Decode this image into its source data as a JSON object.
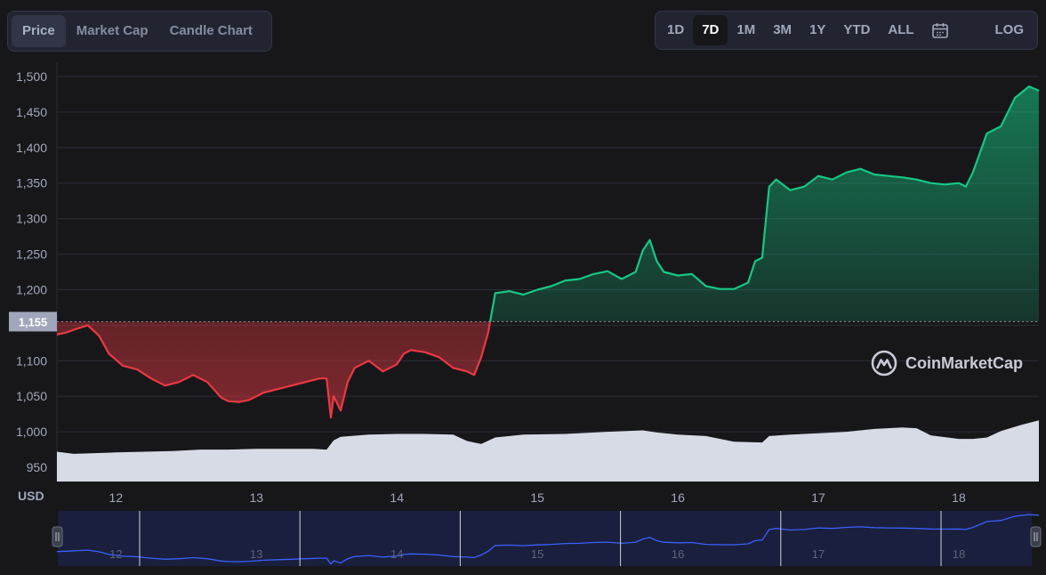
{
  "tabs": [
    {
      "label": "Price",
      "active": true
    },
    {
      "label": "Market Cap",
      "active": false
    },
    {
      "label": "Candle Chart",
      "active": false
    }
  ],
  "ranges": [
    {
      "label": "1D",
      "active": false
    },
    {
      "label": "7D",
      "active": true
    },
    {
      "label": "1M",
      "active": false
    },
    {
      "label": "3M",
      "active": false
    },
    {
      "label": "1Y",
      "active": false
    },
    {
      "label": "YTD",
      "active": false
    },
    {
      "label": "ALL",
      "active": false
    }
  ],
  "calendar_icon": "calendar-icon",
  "log_label": "LOG",
  "watermark": "CoinMarketCap",
  "colors": {
    "up": "#16c784",
    "down": "#ea3943",
    "volume": "#d7dbe6",
    "navigator": "#3861fb"
  },
  "chart_data": {
    "type": "line",
    "xlabel": "",
    "ylabel": "USD",
    "ylim": [
      930,
      1520
    ],
    "y_ticks": [
      950,
      1000,
      1050,
      1100,
      1150,
      1200,
      1250,
      1300,
      1350,
      1400,
      1450,
      1500
    ],
    "y_tick_labels": [
      "950",
      "1,000",
      "1,050",
      "1,100",
      "1,150",
      "1,200",
      "1,250",
      "1,300",
      "1,350",
      "1,400",
      "1,450",
      "1,500"
    ],
    "x_ticks": [
      12,
      13,
      14,
      15,
      16,
      17,
      18
    ],
    "x_tick_labels": [
      "12",
      "13",
      "14",
      "15",
      "16",
      "17",
      "18"
    ],
    "xlim": [
      11.58,
      18.57
    ],
    "baseline": 1155,
    "baseline_label": "1,155",
    "grid": true,
    "series": [
      {
        "x": [
          11.58,
          11.65,
          11.72,
          11.8,
          11.88,
          11.95,
          12.05,
          12.15,
          12.25,
          12.35,
          12.45,
          12.55,
          12.65,
          12.75,
          12.8,
          12.88,
          12.95,
          13.05,
          13.15,
          13.25,
          13.35,
          13.45,
          13.5,
          13.53,
          13.55,
          13.6,
          13.65,
          13.7,
          13.8,
          13.9,
          14.0,
          14.05,
          14.1,
          14.2,
          14.3,
          14.4,
          14.5,
          14.55,
          14.6,
          14.65,
          14.7,
          14.8,
          14.9,
          15.0,
          15.1,
          15.2,
          15.3,
          15.4,
          15.5,
          15.6,
          15.7,
          15.75,
          15.8,
          15.85,
          15.9,
          16.0,
          16.1,
          16.2,
          16.3,
          16.4,
          16.5,
          16.55,
          16.6,
          16.65,
          16.7,
          16.8,
          16.9,
          17.0,
          17.1,
          17.2,
          17.3,
          17.4,
          17.5,
          17.6,
          17.7,
          17.8,
          17.9,
          18.0,
          18.05,
          18.1,
          18.2,
          18.3,
          18.4,
          18.5,
          18.57
        ],
        "y": [
          1137,
          1140,
          1145,
          1150,
          1135,
          1110,
          1093,
          1088,
          1075,
          1065,
          1070,
          1080,
          1070,
          1048,
          1043,
          1042,
          1045,
          1055,
          1060,
          1065,
          1070,
          1075,
          1075,
          1020,
          1050,
          1030,
          1070,
          1090,
          1100,
          1085,
          1095,
          1110,
          1115,
          1112,
          1105,
          1090,
          1085,
          1080,
          1105,
          1140,
          1195,
          1198,
          1193,
          1200,
          1205,
          1213,
          1215,
          1222,
          1226,
          1215,
          1225,
          1255,
          1270,
          1240,
          1225,
          1220,
          1222,
          1205,
          1201,
          1201,
          1210,
          1240,
          1245,
          1345,
          1355,
          1340,
          1345,
          1360,
          1355,
          1365,
          1370,
          1362,
          1360,
          1358,
          1355,
          1350,
          1348,
          1350,
          1345,
          1365,
          1420,
          1430,
          1470,
          1486,
          1480
        ]
      }
    ],
    "volume": {
      "x": [
        11.58,
        11.7,
        11.85,
        12.0,
        12.2,
        12.4,
        12.6,
        12.8,
        13.0,
        13.2,
        13.4,
        13.5,
        13.55,
        13.6,
        13.8,
        14.0,
        14.2,
        14.4,
        14.5,
        14.6,
        14.7,
        14.9,
        15.2,
        15.5,
        15.75,
        15.85,
        16.0,
        16.2,
        16.4,
        16.6,
        16.65,
        16.8,
        17.0,
        17.2,
        17.4,
        17.6,
        17.7,
        17.8,
        18.0,
        18.1,
        18.2,
        18.3,
        18.45,
        18.57
      ],
      "y": [
        972,
        969,
        970,
        971,
        972,
        973,
        975,
        975,
        976,
        976,
        976,
        975,
        988,
        993,
        996,
        997,
        997,
        996,
        987,
        983,
        992,
        996,
        997,
        1000,
        1002,
        999,
        996,
        994,
        986,
        985,
        994,
        996,
        998,
        1000,
        1004,
        1006,
        1005,
        995,
        990,
        990,
        992,
        1001,
        1010,
        1016
      ]
    },
    "navigator_ylim": [
      1000,
      1520
    ]
  }
}
